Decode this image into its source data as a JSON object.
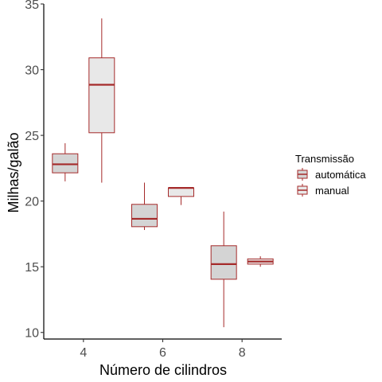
{
  "chart_data": {
    "type": "boxplot",
    "xlabel": "Número de cilindros",
    "ylabel": "Milhas/galão",
    "categories": [
      "4",
      "6",
      "8"
    ],
    "ylim": [
      9.5,
      35
    ],
    "yticks": [
      10,
      15,
      20,
      25,
      30,
      35
    ],
    "grid": false,
    "legend": {
      "title": "Transmissão",
      "position": "right"
    },
    "colors": {
      "stroke": "#a52a2a",
      "fill_auto": "#d4d4d4",
      "fill_manual": "#e8e8e8"
    },
    "series": [
      {
        "name": "automática",
        "boxes": [
          {
            "category": "4",
            "min": 21.5,
            "q1": 22.15,
            "median": 22.8,
            "q3": 23.6,
            "max": 24.4
          },
          {
            "category": "6",
            "min": 17.8,
            "q1": 18.05,
            "median": 18.65,
            "q3": 19.75,
            "max": 21.4
          },
          {
            "category": "8",
            "min": 10.4,
            "q1": 14.05,
            "median": 15.2,
            "q3": 16.6,
            "max": 19.2
          }
        ]
      },
      {
        "name": "manual",
        "boxes": [
          {
            "category": "4",
            "min": 21.4,
            "q1": 25.2,
            "median": 28.85,
            "q3": 30.9,
            "max": 33.9
          },
          {
            "category": "6",
            "min": 19.7,
            "q1": 20.35,
            "median": 21.0,
            "q3": 21.0,
            "max": 21.0
          },
          {
            "category": "8",
            "min": 15.0,
            "q1": 15.2,
            "median": 15.4,
            "q3": 15.6,
            "max": 15.8
          }
        ]
      }
    ]
  }
}
